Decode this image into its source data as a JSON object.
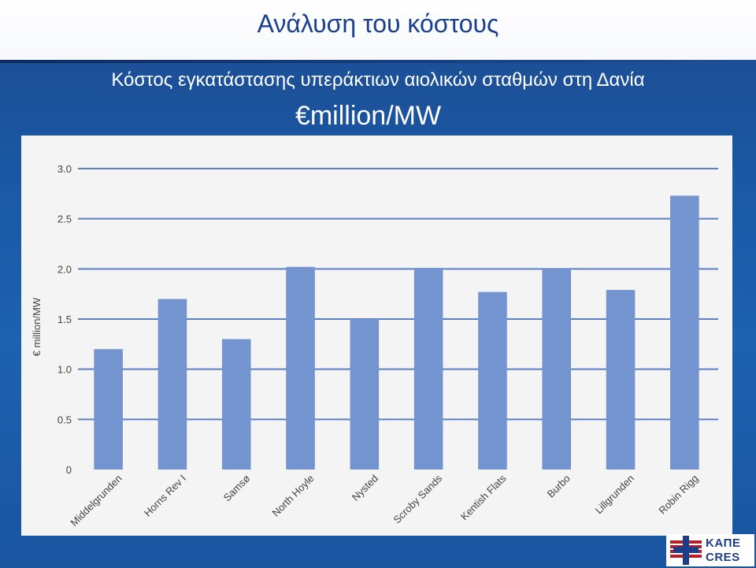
{
  "slide": {
    "title": "Ανάλυση του κόστους",
    "subtitle": "Κόστος εγκατάστασης υπεράκτιων αιολικών σταθμών  στη Δανία",
    "unit_line": "€million/MW"
  },
  "logo": {
    "line1": "ΚΑΠΕ",
    "line2": "CRES"
  },
  "colors": {
    "bar": "#7394cf",
    "grid": "#5b7fc4",
    "axis_text": "#444444"
  },
  "chart_data": {
    "type": "bar",
    "title": "",
    "xlabel": "",
    "ylabel": "€ million/MW",
    "ylim": [
      0,
      3.0
    ],
    "yticks": [
      0,
      0.5,
      1.0,
      1.5,
      2.0,
      2.5,
      3.0
    ],
    "ytick_labels": [
      "0",
      "0.5",
      "1.0",
      "1.5",
      "2.0",
      "2.5",
      "3.0"
    ],
    "grid": true,
    "categories": [
      "Middelgrunden",
      "Horns Rev I",
      "Samsø",
      "North Hoyle",
      "Nysted",
      "Scroby Sands",
      "Kentish Flats",
      "Burbo",
      "Lillgrunden",
      "Robin Rigg"
    ],
    "values": [
      1.2,
      1.7,
      1.3,
      2.02,
      1.5,
      2.01,
      1.77,
      2.0,
      1.79,
      2.73
    ]
  }
}
